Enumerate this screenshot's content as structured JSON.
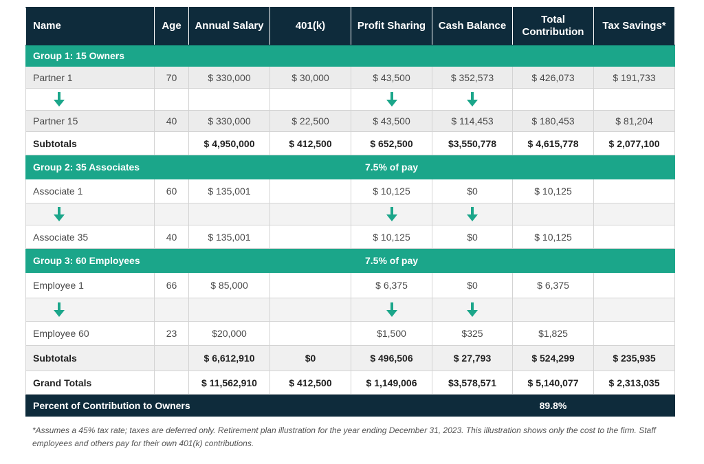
{
  "table": {
    "header": [
      "Name",
      "Age",
      "Annual Salary",
      "401(k)",
      "Profit Sharing",
      "Cash Balance",
      "Total Contribution",
      "Tax Savings*"
    ],
    "rows": [
      [
        "Group 1: 15 Owners",
        null,
        null,
        null,
        null,
        null,
        null,
        null
      ],
      [
        "Partner 1",
        "70",
        "$ 330,000",
        "$ 30,000",
        "$ 43,500",
        "$ 352,573",
        "$ 426,073",
        "$ 191,733"
      ],
      [
        "Partner 15",
        "40",
        "$ 330,000",
        "$ 22,500",
        "$ 43,500",
        "$ 114,453",
        "$ 180,453",
        "$ 81,204"
      ],
      [
        "Subtotals",
        null,
        "$ 4,950,000",
        "$ 412,500",
        "$ 652,500",
        "$3,550,778",
        "$ 4,615,778",
        "$ 2,077,100"
      ],
      [
        "Group 2: 35 Associates",
        null,
        null,
        null,
        "7.5% of pay",
        null,
        null,
        null
      ],
      [
        "Associate 1",
        "60",
        "$ 135,001",
        null,
        "$ 10,125",
        "$0",
        "$ 10,125",
        null
      ],
      [
        "Associate 35",
        "40",
        "$ 135,001",
        null,
        "$ 10,125",
        "$0",
        "$ 10,125",
        null
      ],
      [
        "Group 3: 60 Employees",
        null,
        null,
        null,
        "7.5% of pay",
        null,
        null,
        null
      ],
      [
        "Employee 1",
        "66",
        "$ 85,000",
        null,
        "$ 6,375",
        "$0",
        "$ 6,375",
        null
      ],
      [
        "Employee 60",
        "23",
        "$20,000",
        null,
        "$1,500",
        "$325",
        "$1,825",
        null
      ],
      [
        "Subtotals",
        null,
        "$ 6,612,910",
        "$0",
        "$ 496,506",
        "$ 27,793",
        "$ 524,299",
        "$ 235,935"
      ],
      [
        "Grand Totals",
        null,
        "$ 11,562,910",
        "$ 412,500",
        "$ 1,149,006",
        "$3,578,571",
        "$ 5,140,077",
        "$ 2,313,035"
      ],
      [
        "Percent of Contribution to Owners",
        null,
        null,
        null,
        null,
        null,
        "89.8%",
        null
      ]
    ]
  },
  "footnote": "*Assumes a 45% tax rate; taxes are deferred only. Retirement plan illustration for the year ending December 31, 2023. This illustration shows only the cost to the firm. Staff employees and others pay for their own 401(k) contributions."
}
